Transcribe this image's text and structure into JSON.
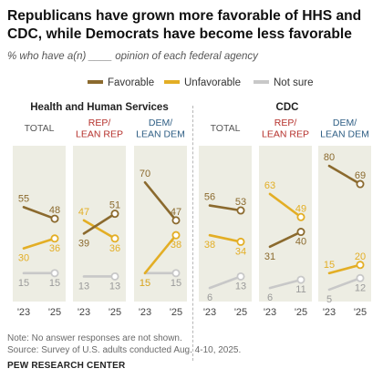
{
  "title": "Republicans have grown more favorable of HHS and CDC, while Democrats have become less favorable",
  "subtitle": "% who have a(n) ____ opinion of each federal agency",
  "legend": [
    {
      "label": "Favorable",
      "color": "#8B6A2E"
    },
    {
      "label": "Unfavorable",
      "color": "#E3AE25"
    },
    {
      "label": "Not sure",
      "color": "#C8C8C8"
    }
  ],
  "groups": [
    {
      "title": "Health and Human Services"
    },
    {
      "title": "CDC"
    }
  ],
  "note": "Note: No answer responses are not shown.",
  "source": "Source: Survey of U.S. adults conducted Aug. 4-10, 2025.",
  "brand": "PEW RESEARCH CENTER",
  "chart_data": {
    "type": "line",
    "x": [
      "'23",
      "'25"
    ],
    "panel_color": "#EDEDE3",
    "colors": {
      "Favorable": "#8B6A2E",
      "Unfavorable": "#E3AE25",
      "Not sure": "#C8C8C8"
    },
    "ylim": [
      0,
      90
    ],
    "panels": [
      {
        "group": "Health and Human Services",
        "label": "TOTAL",
        "label_color": "#555555",
        "series": [
          {
            "name": "Favorable",
            "values": [
              55,
              48
            ]
          },
          {
            "name": "Unfavorable",
            "values": [
              30,
              36
            ]
          },
          {
            "name": "Not sure",
            "values": [
              15,
              15
            ]
          }
        ]
      },
      {
        "group": "Health and Human Services",
        "label": "REP/\nLEAN REP",
        "label_color": "#B5302B",
        "series": [
          {
            "name": "Favorable",
            "values": [
              39,
              51
            ]
          },
          {
            "name": "Unfavorable",
            "values": [
              47,
              36
            ]
          },
          {
            "name": "Not sure",
            "values": [
              13,
              13
            ]
          }
        ]
      },
      {
        "group": "Health and Human Services",
        "label": "DEM/\nLEAN DEM",
        "label_color": "#2E5E84",
        "series": [
          {
            "name": "Favorable",
            "values": [
              70,
              47
            ]
          },
          {
            "name": "Unfavorable",
            "values": [
              15,
              38
            ]
          },
          {
            "name": "Not sure",
            "values": [
              15,
              15
            ]
          }
        ]
      },
      {
        "group": "CDC",
        "label": "TOTAL",
        "label_color": "#555555",
        "series": [
          {
            "name": "Favorable",
            "values": [
              56,
              53
            ]
          },
          {
            "name": "Unfavorable",
            "values": [
              38,
              34
            ]
          },
          {
            "name": "Not sure",
            "values": [
              6,
              13
            ]
          }
        ]
      },
      {
        "group": "CDC",
        "label": "REP/\nLEAN REP",
        "label_color": "#B5302B",
        "series": [
          {
            "name": "Favorable",
            "values": [
              31,
              40
            ]
          },
          {
            "name": "Unfavorable",
            "values": [
              63,
              49
            ]
          },
          {
            "name": "Not sure",
            "values": [
              6,
              11
            ]
          }
        ]
      },
      {
        "group": "CDC",
        "label": "DEM/\nLEAN DEM",
        "label_color": "#2E5E84",
        "series": [
          {
            "name": "Favorable",
            "values": [
              80,
              69
            ]
          },
          {
            "name": "Unfavorable",
            "values": [
              15,
              20
            ]
          },
          {
            "name": "Not sure",
            "values": [
              5,
              12
            ]
          }
        ]
      }
    ]
  }
}
